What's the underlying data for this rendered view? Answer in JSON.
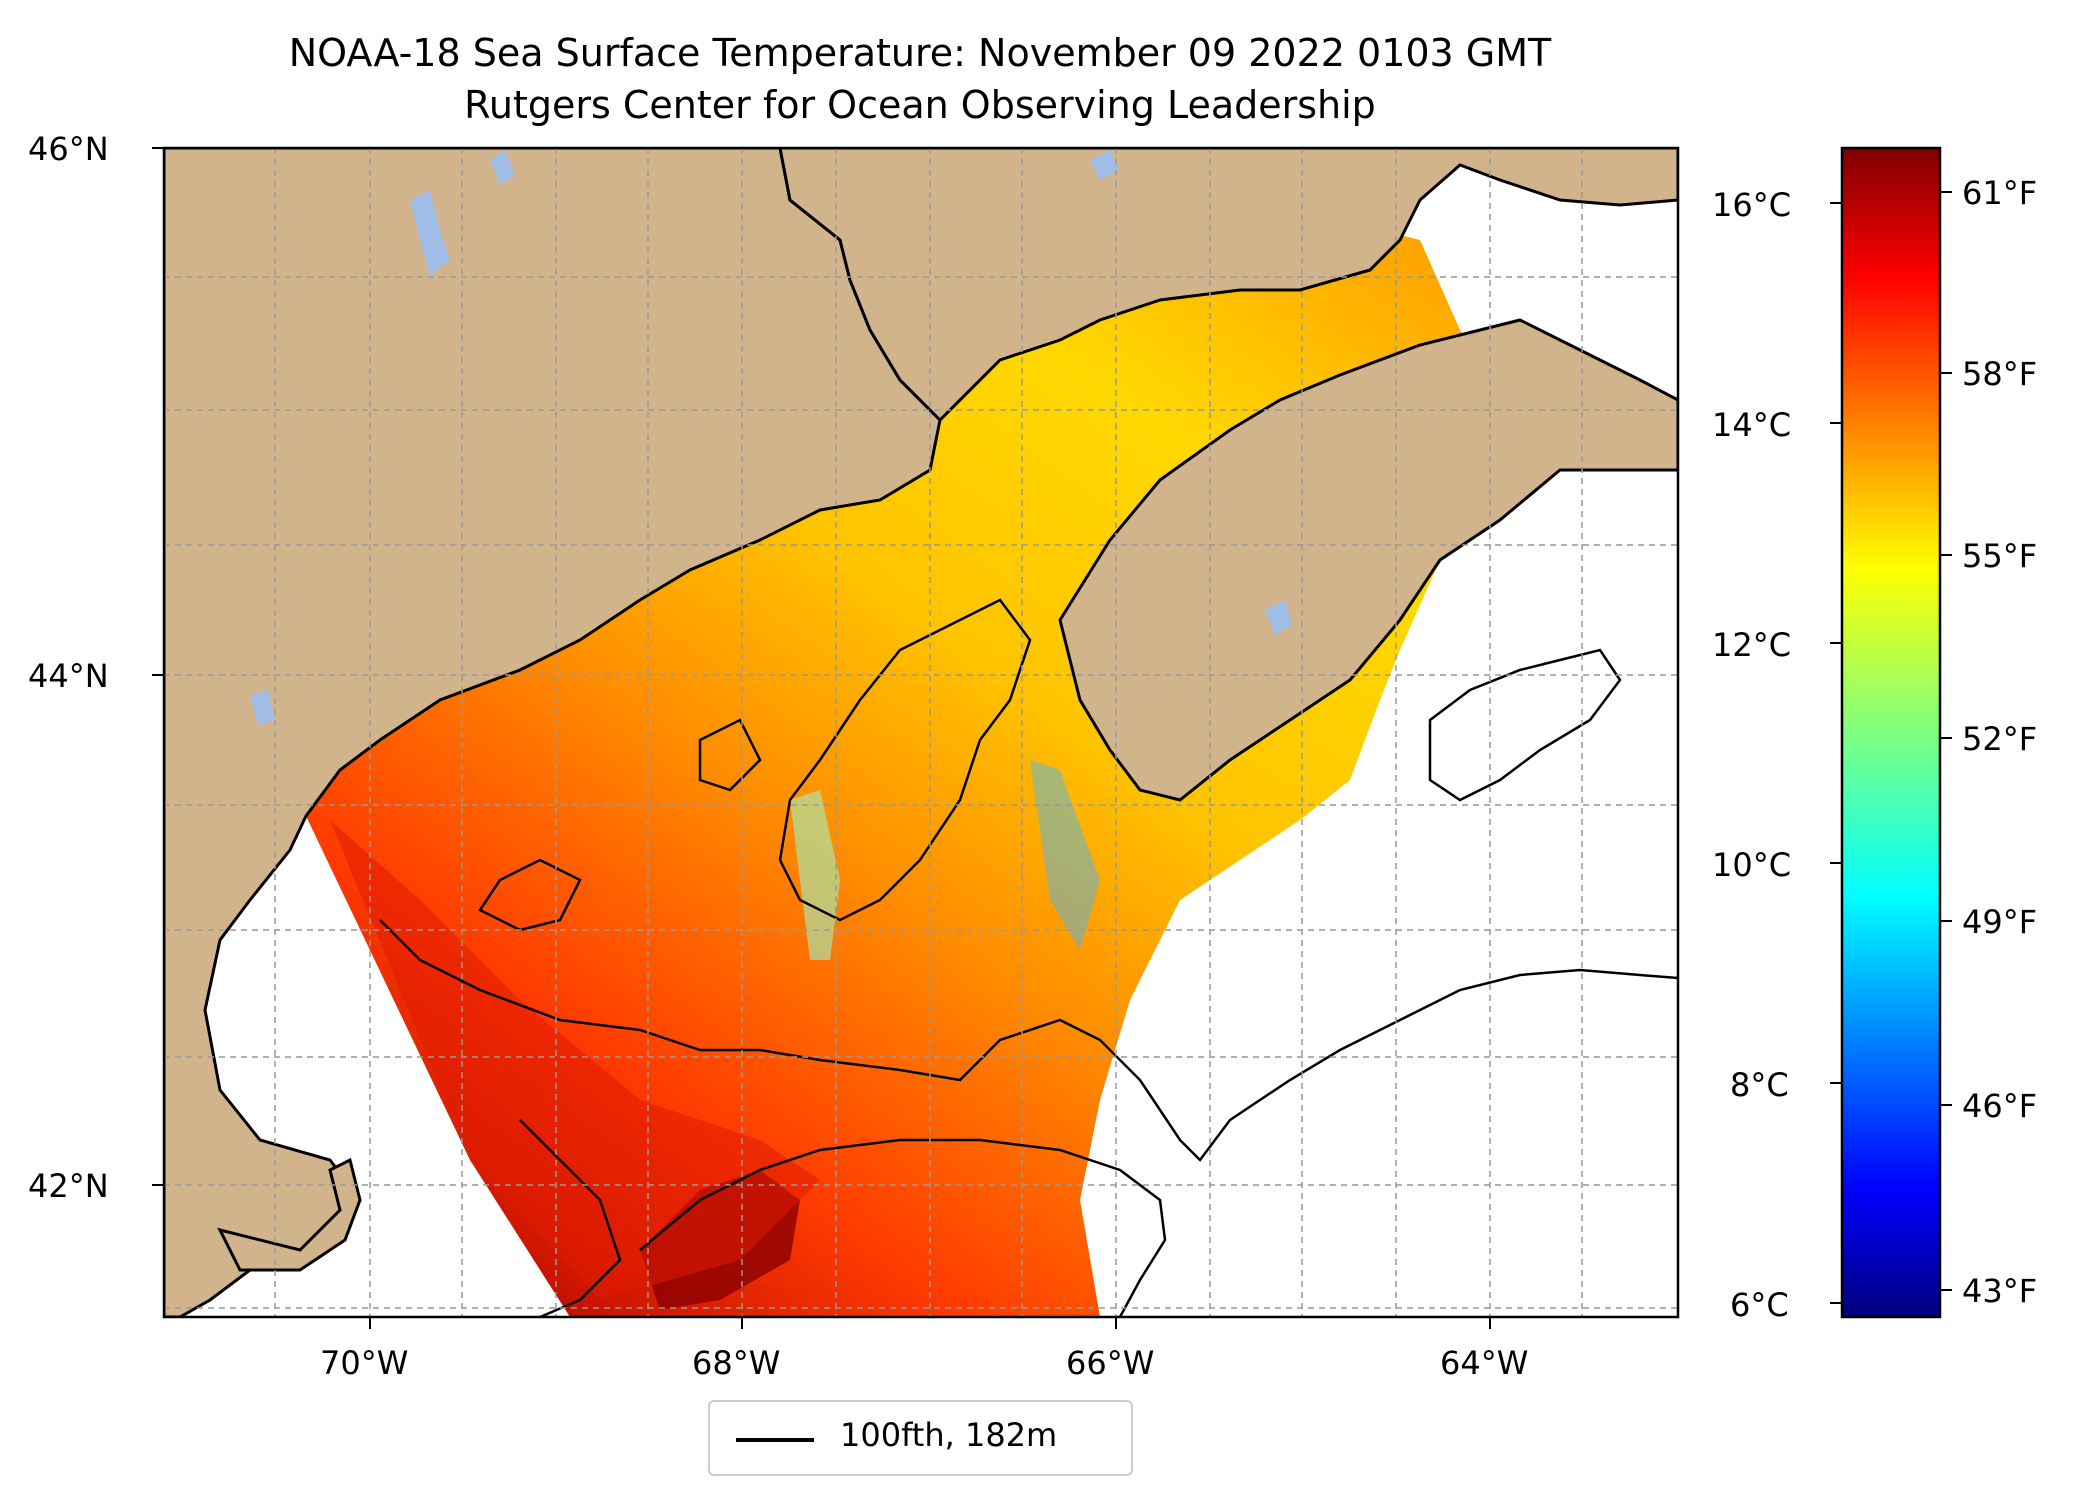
{
  "title": "NOAA-18 Sea Surface Temperature: November 09 2022 0103 GMT",
  "subtitle": "Rutgers Center for Ocean Observing Leadership",
  "map": {
    "lat_labels": [
      "46°N",
      "44°N",
      "42°N"
    ],
    "lon_labels": [
      "70°W",
      "68°W",
      "66°W",
      "64°W"
    ],
    "extent": {
      "lon_min": -71.1,
      "lon_max": -62.9,
      "lat_min": 41.5,
      "lat_max": 46.0
    },
    "land_color": "#d2b48c",
    "lake_color": "#a0bde8",
    "gridlines": true
  },
  "legend": {
    "label": "100fth, 182m",
    "placement": "bottom-center"
  },
  "colorbar": {
    "celsius_labels": [
      "16°C",
      "14°C",
      "12°C",
      "10°C",
      "8°C",
      "6°C"
    ],
    "fahrenheit_labels": [
      "61°F",
      "58°F",
      "55°F",
      "52°F",
      "49°F",
      "46°F",
      "43°F"
    ],
    "colormap": "jet",
    "range_celsius": [
      5.9,
      16.5
    ]
  }
}
